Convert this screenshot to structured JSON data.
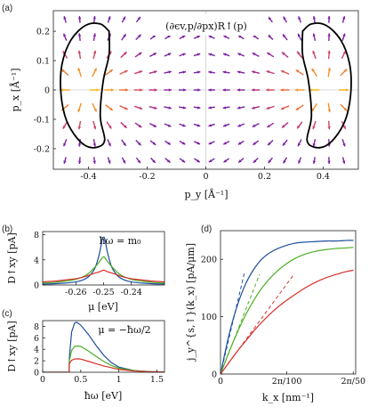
{
  "figure": {
    "panel_labels": [
      "(a)",
      "(b)",
      "(c)",
      "(d)"
    ]
  },
  "chart_data": [
    {
      "panel": "(a)",
      "type": "quiver",
      "annotation": "(∂ϵv,p/∂px)R↑(p)",
      "xlabel": "p_y [Å⁻¹]",
      "ylabel": "p_x [Å⁻¹]",
      "xlim": [
        -0.52,
        0.52
      ],
      "ylim": [
        -0.27,
        0.27
      ],
      "xticks": [
        -0.4,
        -0.2,
        0,
        0.2,
        0.4
      ],
      "yticks": [
        -0.2,
        -0.1,
        0,
        0.1,
        0.2
      ],
      "xtick_labels": [
        "-0.4",
        "-0.2",
        "0",
        "0.2",
        "0.4"
      ],
      "ytick_labels": [
        "-0.2",
        "-0.1",
        "0",
        "0.1",
        "0.2"
      ],
      "grid_y": [
        -0.24,
        -0.18,
        -0.12,
        -0.06,
        0.0,
        0.06,
        0.12,
        0.18,
        0.24
      ],
      "grid_x": [
        -0.48,
        -0.43,
        -0.38,
        -0.33,
        -0.28,
        -0.23,
        -0.18,
        -0.13,
        -0.08,
        -0.03,
        0.02,
        0.07,
        0.12,
        0.17,
        0.22,
        0.27,
        0.32,
        0.37,
        0.42,
        0.47
      ],
      "valley_centers_py": [
        -0.41,
        0.41
      ],
      "contour_left": [
        [
          -0.33,
          0.2
        ],
        [
          -0.36,
          0.225
        ],
        [
          -0.41,
          0.22
        ],
        [
          -0.46,
          0.17
        ],
        [
          -0.49,
          0.09
        ],
        [
          -0.495,
          0.0
        ],
        [
          -0.48,
          -0.09
        ],
        [
          -0.45,
          -0.15
        ],
        [
          -0.41,
          -0.19
        ],
        [
          -0.37,
          -0.195
        ],
        [
          -0.345,
          -0.17
        ],
        [
          -0.36,
          -0.09
        ],
        [
          -0.35,
          0.03
        ],
        [
          -0.33,
          0.12
        ],
        [
          -0.33,
          0.2
        ]
      ],
      "contour_right": [
        [
          0.33,
          0.2
        ],
        [
          0.36,
          0.225
        ],
        [
          0.41,
          0.22
        ],
        [
          0.46,
          0.17
        ],
        [
          0.49,
          0.09
        ],
        [
          0.495,
          0.0
        ],
        [
          0.48,
          -0.09
        ],
        [
          0.45,
          -0.15
        ],
        [
          0.41,
          -0.19
        ],
        [
          0.37,
          -0.195
        ],
        [
          0.345,
          -0.17
        ],
        [
          0.36,
          -0.09
        ],
        [
          0.35,
          0.03
        ],
        [
          0.33,
          0.12
        ],
        [
          0.33,
          0.2
        ]
      ],
      "colormap": [
        "#7a1fa2",
        "#c0307a",
        "#e8603c",
        "#f5a623",
        "#f6c700"
      ]
    },
    {
      "panel": "(b)",
      "type": "line",
      "annotation": "ħω = m₀",
      "xlabel": "μ [eV]",
      "ylabel": "D↑xy [pA]",
      "xlim": [
        -0.272,
        -0.228
      ],
      "ylim": [
        0,
        8.5
      ],
      "xticks": [
        -0.26,
        -0.25,
        -0.24
      ],
      "xtick_labels": [
        "-0.26",
        "-0.25",
        "-0.24"
      ],
      "yticks": [
        0,
        4,
        8
      ],
      "ytick_labels": [
        "0",
        "4",
        "8"
      ],
      "x": [
        -0.272,
        -0.268,
        -0.264,
        -0.26,
        -0.257,
        -0.255,
        -0.253,
        -0.2515,
        -0.2505,
        -0.25,
        -0.2495,
        -0.2485,
        -0.247,
        -0.245,
        -0.243,
        -0.24,
        -0.236,
        -0.232,
        -0.228
      ],
      "series": [
        {
          "color": "#1f4e9c",
          "values": [
            0.15,
            0.2,
            0.3,
            0.5,
            0.9,
            1.5,
            2.8,
            5.0,
            7.2,
            7.6,
            7.2,
            5.0,
            2.8,
            1.5,
            0.9,
            0.5,
            0.3,
            0.2,
            0.15
          ]
        },
        {
          "color": "#4caf24",
          "values": [
            0.3,
            0.4,
            0.6,
            0.9,
            1.4,
            2.0,
            2.9,
            3.7,
            4.3,
            4.5,
            4.3,
            3.7,
            2.9,
            2.0,
            1.4,
            0.9,
            0.6,
            0.4,
            0.3
          ]
        },
        {
          "color": "#d9302a",
          "values": [
            0.5,
            0.6,
            0.8,
            1.0,
            1.3,
            1.6,
            1.9,
            2.1,
            2.3,
            2.35,
            2.3,
            2.1,
            1.9,
            1.6,
            1.3,
            1.0,
            0.8,
            0.6,
            0.5
          ]
        }
      ]
    },
    {
      "panel": "(c)",
      "type": "line",
      "annotation": "μ = −ħω/2",
      "xlabel": "ħω [eV]",
      "ylabel": "D↑xy [pA]",
      "xlim": [
        0,
        1.6
      ],
      "ylim": [
        0,
        9
      ],
      "xticks": [
        0,
        0.5,
        1,
        1.5
      ],
      "xtick_labels": [
        "0",
        "0.5",
        "1",
        "1.5"
      ],
      "yticks": [
        0,
        2,
        4,
        6,
        8
      ],
      "ytick_labels": [
        "0",
        "2",
        "4",
        "6",
        "8"
      ],
      "x": [
        0,
        0.3,
        0.349,
        0.35,
        0.38,
        0.42,
        0.45,
        0.5,
        0.6,
        0.7,
        0.8,
        0.9,
        1.0,
        1.2,
        1.4,
        1.6
      ],
      "series": [
        {
          "color": "#1f4e9c",
          "values": [
            0,
            0,
            0,
            2.5,
            7.0,
            8.6,
            8.7,
            8.2,
            6.6,
            4.7,
            3.0,
            1.7,
            0.9,
            0.3,
            0.1,
            0.05
          ]
        },
        {
          "color": "#4caf24",
          "values": [
            0,
            0,
            0,
            2.0,
            3.8,
            4.5,
            4.6,
            4.5,
            3.7,
            2.8,
            1.9,
            1.2,
            0.7,
            0.3,
            0.1,
            0.05
          ]
        },
        {
          "color": "#d9302a",
          "values": [
            0,
            0,
            0,
            1.5,
            2.1,
            2.3,
            2.35,
            2.3,
            1.9,
            1.5,
            1.1,
            0.8,
            0.5,
            0.2,
            0.1,
            0.05
          ]
        }
      ]
    },
    {
      "panel": "(d)",
      "type": "line",
      "xlabel": "k_x [nm⁻¹]",
      "ylabel": "j_y^{s,↑}(k_x) [pA/μm]",
      "xlim": [
        0,
        0.128
      ],
      "ylim": [
        0,
        250
      ],
      "xticks": [
        0,
        0.0628,
        0.1257
      ],
      "xtick_labels": [
        "0",
        "2π/100",
        "2π/50"
      ],
      "yticks": [
        0,
        100,
        200
      ],
      "ytick_labels": [
        "0",
        "100",
        "200"
      ],
      "x": [
        0,
        0.008,
        0.016,
        0.024,
        0.032,
        0.04,
        0.05,
        0.06,
        0.07,
        0.08,
        0.09,
        0.1,
        0.11,
        0.12,
        0.126
      ],
      "series": [
        {
          "color": "#1f4e9c",
          "values": [
            0,
            68,
            120,
            158,
            184,
            202,
            215,
            223,
            228,
            230,
            231,
            232,
            232,
            233,
            233
          ]
        },
        {
          "color": "#4caf24",
          "values": [
            0,
            38,
            73,
            104,
            130,
            152,
            173,
            189,
            201,
            209,
            214,
            217,
            219,
            220,
            221
          ]
        },
        {
          "color": "#d9302a",
          "values": [
            0,
            20,
            40,
            58,
            76,
            92,
            110,
            125,
            138,
            150,
            160,
            168,
            174,
            179,
            181
          ]
        }
      ],
      "tangent_slopes": [
        {
          "color": "#1f4e9c",
          "slope": 7800,
          "x_end": 0.023
        },
        {
          "color": "#4caf24",
          "slope": 4700,
          "x_end": 0.037
        },
        {
          "color": "#d9302a",
          "slope": 2500,
          "x_end": 0.07
        }
      ]
    }
  ]
}
